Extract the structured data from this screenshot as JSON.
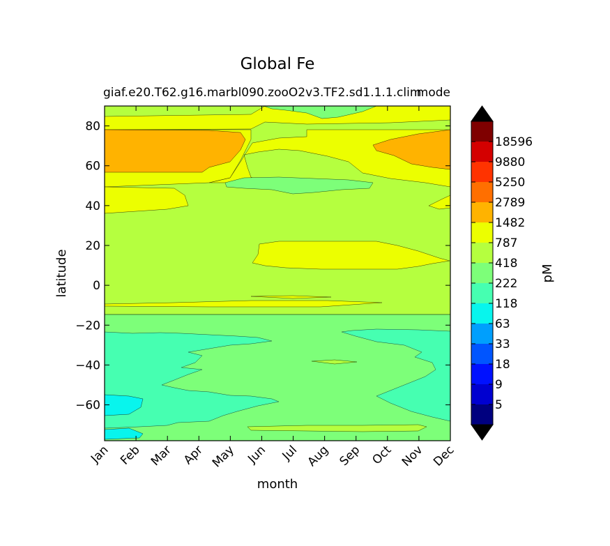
{
  "chart_data": {
    "type": "heatmap",
    "title": "Global Fe",
    "subtitle_left": "giaf.e20.T62.g16.marbl090.zooO2v3.TF2.sd1.1.1.clim",
    "subtitle_right": "mode",
    "xlabel": "month",
    "ylabel": "latitude",
    "colorbar_label": "pM",
    "x_categories": [
      "Jan",
      "Feb",
      "Mar",
      "Apr",
      "May",
      "Jun",
      "Jul",
      "Aug",
      "Sep",
      "Oct",
      "Nov",
      "Dec"
    ],
    "y_ticks": [
      80,
      60,
      40,
      20,
      0,
      -20,
      -40,
      -60
    ],
    "ylim": [
      -78,
      90
    ],
    "colorbar_levels": [
      "18596",
      "9880",
      "5250",
      "2789",
      "1482",
      "787",
      "418",
      "222",
      "118",
      "63",
      "33",
      "18",
      "9",
      "5"
    ],
    "colorbar_colors": [
      "#000000",
      "#7f0000",
      "#d40000",
      "#ff3300",
      "#ff6f00",
      "#ffb300",
      "#ecff00",
      "#b5ff3f",
      "#7dff79",
      "#46ffb1",
      "#08f5ed",
      "#009ffd",
      "#0055ff",
      "#0011ff",
      "#0000d0",
      "#00007f",
      "#000000"
    ],
    "bands": [
      {
        "name": "band-arctic",
        "lat_from": 90,
        "lat_to": 84,
        "color": "#ecff00",
        "value": "787-1482"
      },
      {
        "name": "band-high-north",
        "lat_from": 84,
        "lat_to": 56,
        "color": "#ffb300",
        "value": "1482-2789"
      },
      {
        "name": "band-mid-north",
        "lat_from": 56,
        "lat_to": 36,
        "color": "#ecff00",
        "value": "787-1482"
      },
      {
        "name": "band-north-subtropics",
        "lat_from": 36,
        "lat_to": -15,
        "color": "#b5ff3f",
        "value": "418-787"
      },
      {
        "name": "band-south-subtropics",
        "lat_from": -15,
        "lat_to": -25,
        "color": "#7dff79",
        "value": "222-418"
      },
      {
        "name": "band-southern-ocean",
        "lat_from": -25,
        "lat_to": -72,
        "color": "#46ffb1",
        "value": "118-222"
      },
      {
        "name": "band-antarctic",
        "lat_from": -72,
        "lat_to": -78,
        "color": "#08f5ed",
        "value": "63-118"
      }
    ]
  }
}
